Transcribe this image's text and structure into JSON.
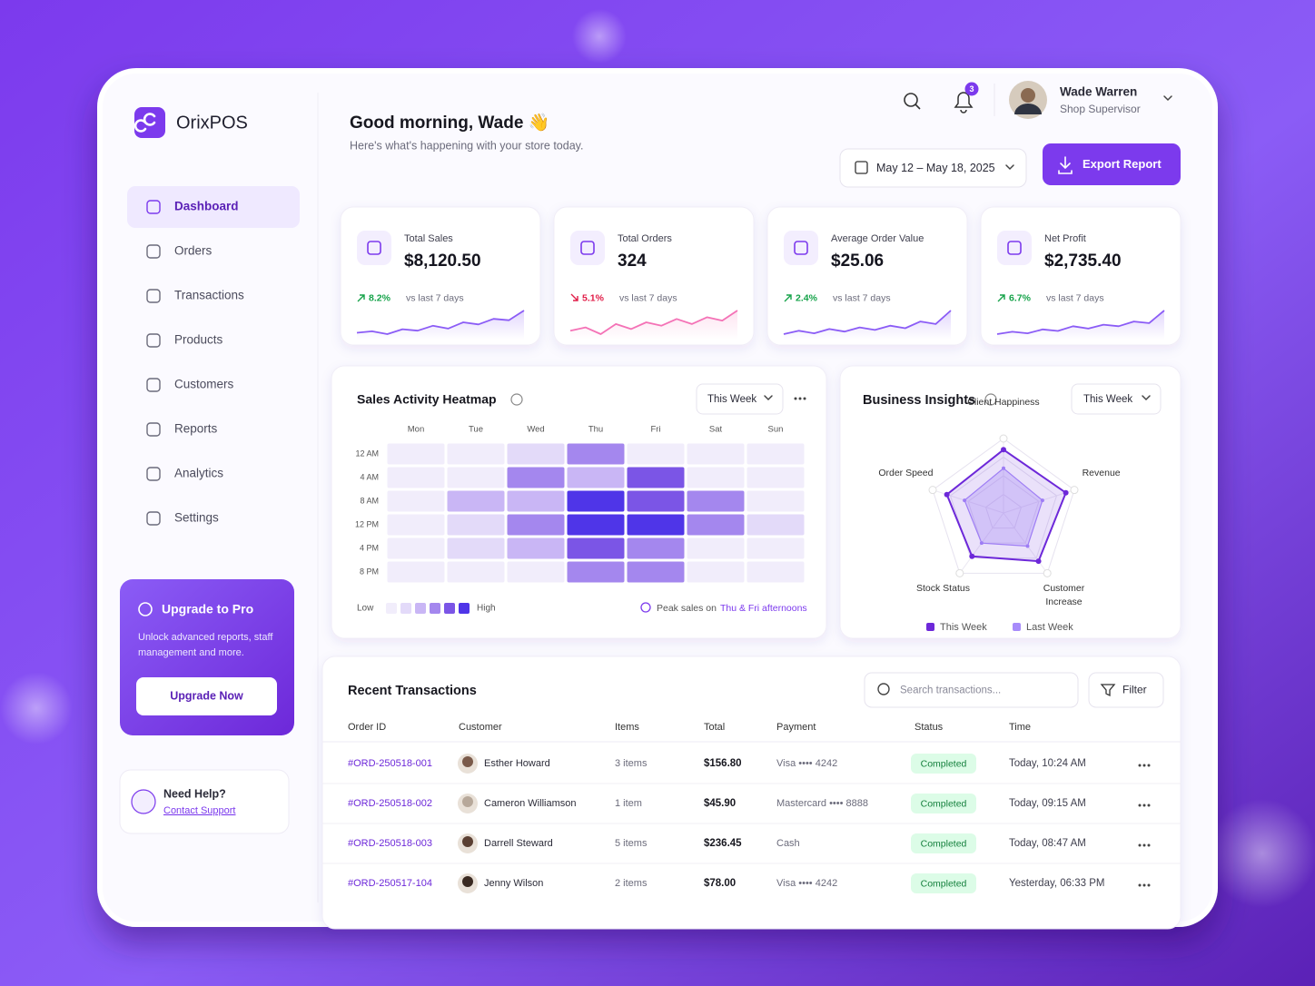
{
  "brand": "OrixPOS",
  "nav": [
    "Dashboard",
    "Orders",
    "Transactions",
    "Products",
    "Customers",
    "Reports",
    "Analytics",
    "Settings"
  ],
  "upgrade": {
    "title": "Upgrade to Pro",
    "text": "Unlock advanced reports, staff management and more.",
    "button": "Upgrade Now"
  },
  "help": {
    "title": "Need Help?",
    "link": "Contact Support"
  },
  "header": {
    "greeting": "Good morning, Wade 👋",
    "subtitle": "Here's what's happening with your store today.",
    "notifications": 3,
    "user_name": "Wade Warren",
    "user_role": "Shop Supervisor",
    "date_range": "May 12 – May 18, 2025",
    "export": "Export Report"
  },
  "kpis": [
    {
      "label": "Total Sales",
      "value": "$8,120.50",
      "change": "8.2%",
      "direction": "up",
      "compare": "vs last 7 days",
      "trend": [
        30,
        32,
        28,
        35,
        33,
        40,
        36,
        45,
        42,
        50,
        48,
        62
      ]
    },
    {
      "label": "Total Orders",
      "value": "324",
      "change": "5.1%",
      "direction": "down",
      "compare": "vs last 7 days",
      "trend": [
        40,
        42,
        38,
        44,
        41,
        45,
        43,
        47,
        44,
        48,
        46,
        52
      ]
    },
    {
      "label": "Average Order Value",
      "value": "$25.06",
      "change": "2.4%",
      "direction": "up",
      "compare": "vs last 7 days",
      "trend": [
        30,
        34,
        31,
        36,
        33,
        38,
        35,
        40,
        37,
        45,
        42,
        58
      ]
    },
    {
      "label": "Net Profit",
      "value": "$2,735.40",
      "change": "6.7%",
      "direction": "up",
      "compare": "vs last 7 days",
      "trend": [
        30,
        33,
        31,
        36,
        34,
        40,
        37,
        42,
        40,
        46,
        44,
        60
      ]
    }
  ],
  "heatmap": {
    "title": "Sales Activity Heatmap",
    "period": "This Week",
    "days": [
      "Mon",
      "Tue",
      "Wed",
      "Thu",
      "Fri",
      "Sat",
      "Sun"
    ],
    "hours": [
      "12 AM",
      "4 AM",
      "8 AM",
      "12 PM",
      "4 PM",
      "8 PM"
    ],
    "values": [
      [
        1,
        1,
        2,
        4,
        1,
        1,
        1
      ],
      [
        1,
        1,
        4,
        3,
        5,
        1,
        1
      ],
      [
        1,
        3,
        3,
        6,
        5,
        4,
        1
      ],
      [
        1,
        2,
        4,
        6,
        6,
        4,
        2
      ],
      [
        1,
        2,
        3,
        5,
        4,
        1,
        1
      ],
      [
        1,
        1,
        1,
        4,
        4,
        1,
        1
      ]
    ],
    "low": "Low",
    "high": "High",
    "note": "Peak sales on",
    "note_highlight": "Thu & Fri afternoons"
  },
  "insights": {
    "title": "Business Insights",
    "period": "This Week",
    "axes": [
      "Client Happiness",
      "Revenue",
      "Customer Increase",
      "Stock Status",
      "Order Speed"
    ],
    "rlim": [
      0,
      100
    ],
    "series": [
      {
        "name": "This Week",
        "color": "#6d28d9",
        "values": [
          85,
          88,
          80,
          72,
          80
        ]
      },
      {
        "name": "Last Week",
        "color": "#a78bfa",
        "values": [
          60,
          55,
          55,
          50,
          55
        ]
      }
    ]
  },
  "transactions": {
    "title": "Recent Transactions",
    "search_placeholder": "Search transactions...",
    "filter": "Filter",
    "columns": [
      "Order ID",
      "Customer",
      "Items",
      "Total",
      "Payment",
      "Status",
      "Time"
    ],
    "rows": [
      {
        "order_id": "#ORD-250518-001",
        "customer": "Esther Howard",
        "items": "3 items",
        "total": "$156.80",
        "payment": "Visa •••• 4242",
        "status": "Completed",
        "time": "Today, 10:24 AM"
      },
      {
        "order_id": "#ORD-250518-002",
        "customer": "Cameron Williamson",
        "items": "1 item",
        "total": "$45.90",
        "payment": "Mastercard •••• 8888",
        "status": "Completed",
        "time": "Today, 09:15 AM"
      },
      {
        "order_id": "#ORD-250518-003",
        "customer": "Darrell Steward",
        "items": "5 items",
        "total": "$236.45",
        "payment": "Cash",
        "status": "Completed",
        "time": "Today, 08:47 AM"
      },
      {
        "order_id": "#ORD-250517-104",
        "customer": "Jenny Wilson",
        "items": "2 items",
        "total": "$78.00",
        "payment": "Visa •••• 4242",
        "status": "Completed",
        "time": "Yesterday, 06:33 PM"
      }
    ]
  }
}
